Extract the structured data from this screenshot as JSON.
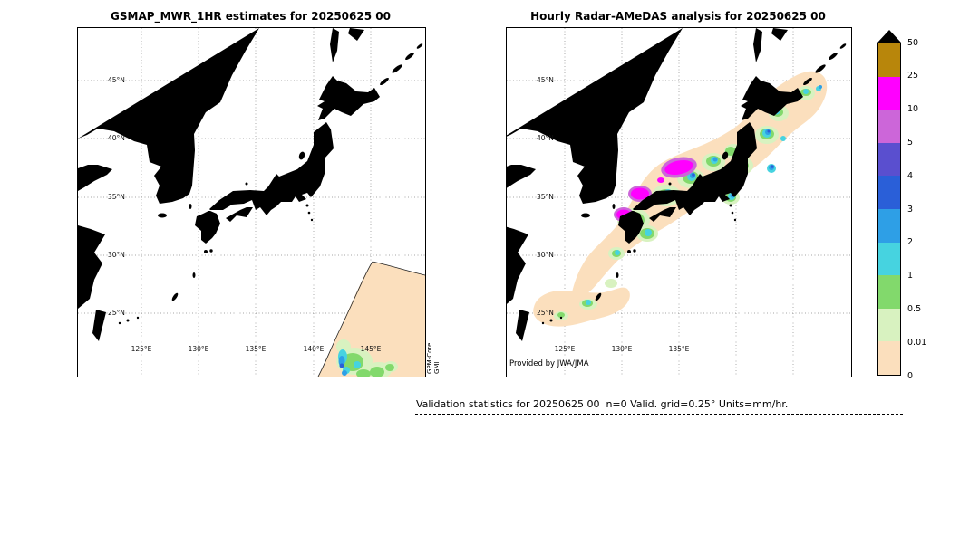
{
  "figure": {
    "left_panel": {
      "title": "GSMAP_MWR_1HR estimates for 20250625 00",
      "lat_labels": [
        "45°N",
        "40°N",
        "35°N",
        "30°N",
        "25°N"
      ],
      "lon_labels": [
        "125°E",
        "130°E",
        "135°E",
        "140°E",
        "145°E"
      ],
      "watermark_line1": "GPM-Core",
      "watermark_line2": "GMI"
    },
    "right_panel": {
      "title": "Hourly Radar-AMeDAS analysis for 20250625 00",
      "lat_labels": [
        "45°N",
        "40°N",
        "35°N",
        "30°N",
        "25°N"
      ],
      "lon_labels": [
        "125°E",
        "130°E",
        "135°E"
      ],
      "credit": "Provided by JWA/JMA"
    },
    "colorbar": {
      "labels": [
        "50",
        "25",
        "10",
        "5",
        "4",
        "3",
        "2",
        "1",
        "0.5",
        "0.01",
        "0"
      ],
      "colors_top_to_bottom": [
        "#b8860b",
        "#ff00ff",
        "#cc66d9",
        "#5a4fcf",
        "#2a5fd8",
        "#2e9fe6",
        "#46d3e0",
        "#82d96c",
        "#d8f2c0",
        "#fbdfbd"
      ],
      "overflow_triangle_color": "#000000",
      "units": "mm/hr"
    },
    "footer": {
      "stats_line": "Validation statistics for 20250625 00  n=0 Valid. grid=0.25° Units=mm/hr."
    }
  },
  "chart_data": [
    {
      "type": "heatmap",
      "title": "GSMAP_MWR_1HR estimates for 20250625 00",
      "x_ticks": [
        "125°E",
        "130°E",
        "135°E",
        "140°E",
        "145°E"
      ],
      "y_ticks": [
        "45°N",
        "40°N",
        "35°N",
        "30°N",
        "25°N"
      ],
      "x_range": [
        "120°E",
        "150°E"
      ],
      "y_range": [
        "20°N",
        "49.5°N"
      ],
      "units": "mm/hr",
      "legend_levels": [
        0,
        0.01,
        0.5,
        1,
        2,
        3,
        4,
        5,
        10,
        25,
        50
      ],
      "annotation": "GPM-Core GMI",
      "observed_features": [
        {
          "region": "satellite swath wedge in SE corner, ~141-147°E / 20-25°N",
          "intensity_mm_hr": "0-0.5 widespread light rain"
        },
        {
          "region": "small cells inside swath near 142-144°E / 20-22°N",
          "intensity_mm_hr": "1-4"
        },
        {
          "region": "remainder of domain",
          "intensity_mm_hr": "no data (outside swath)"
        }
      ]
    },
    {
      "type": "heatmap",
      "title": "Hourly Radar-AMeDAS analysis for 20250625 00",
      "x_ticks": [
        "125°E",
        "130°E",
        "135°E"
      ],
      "y_ticks": [
        "45°N",
        "40°N",
        "35°N",
        "30°N",
        "25°N"
      ],
      "x_range": [
        "120°E",
        "150°E"
      ],
      "y_range": [
        "20°N",
        "49.5°N"
      ],
      "units": "mm/hr",
      "legend_levels": [
        0,
        0.01,
        0.5,
        1,
        2,
        3,
        4,
        5,
        10,
        25,
        50
      ],
      "annotation": "Provided by JWA/JMA",
      "observed_features": [
        {
          "region": "broad band along Japanese archipelago from Okinawa (~127°E/26°N) to east of Hokkaido (~147°E/45°N)",
          "intensity_mm_hr": "0-1 widespread"
        },
        {
          "region": "embedded cells over Kyushu, Shikoku, central Honshu, Tohoku",
          "intensity_mm_hr": "1-5"
        },
        {
          "region": "heavy cells over western/central Honshu ~133-136°E / 34.5-36°N",
          "intensity_mm_hr": "10-25"
        }
      ]
    }
  ]
}
